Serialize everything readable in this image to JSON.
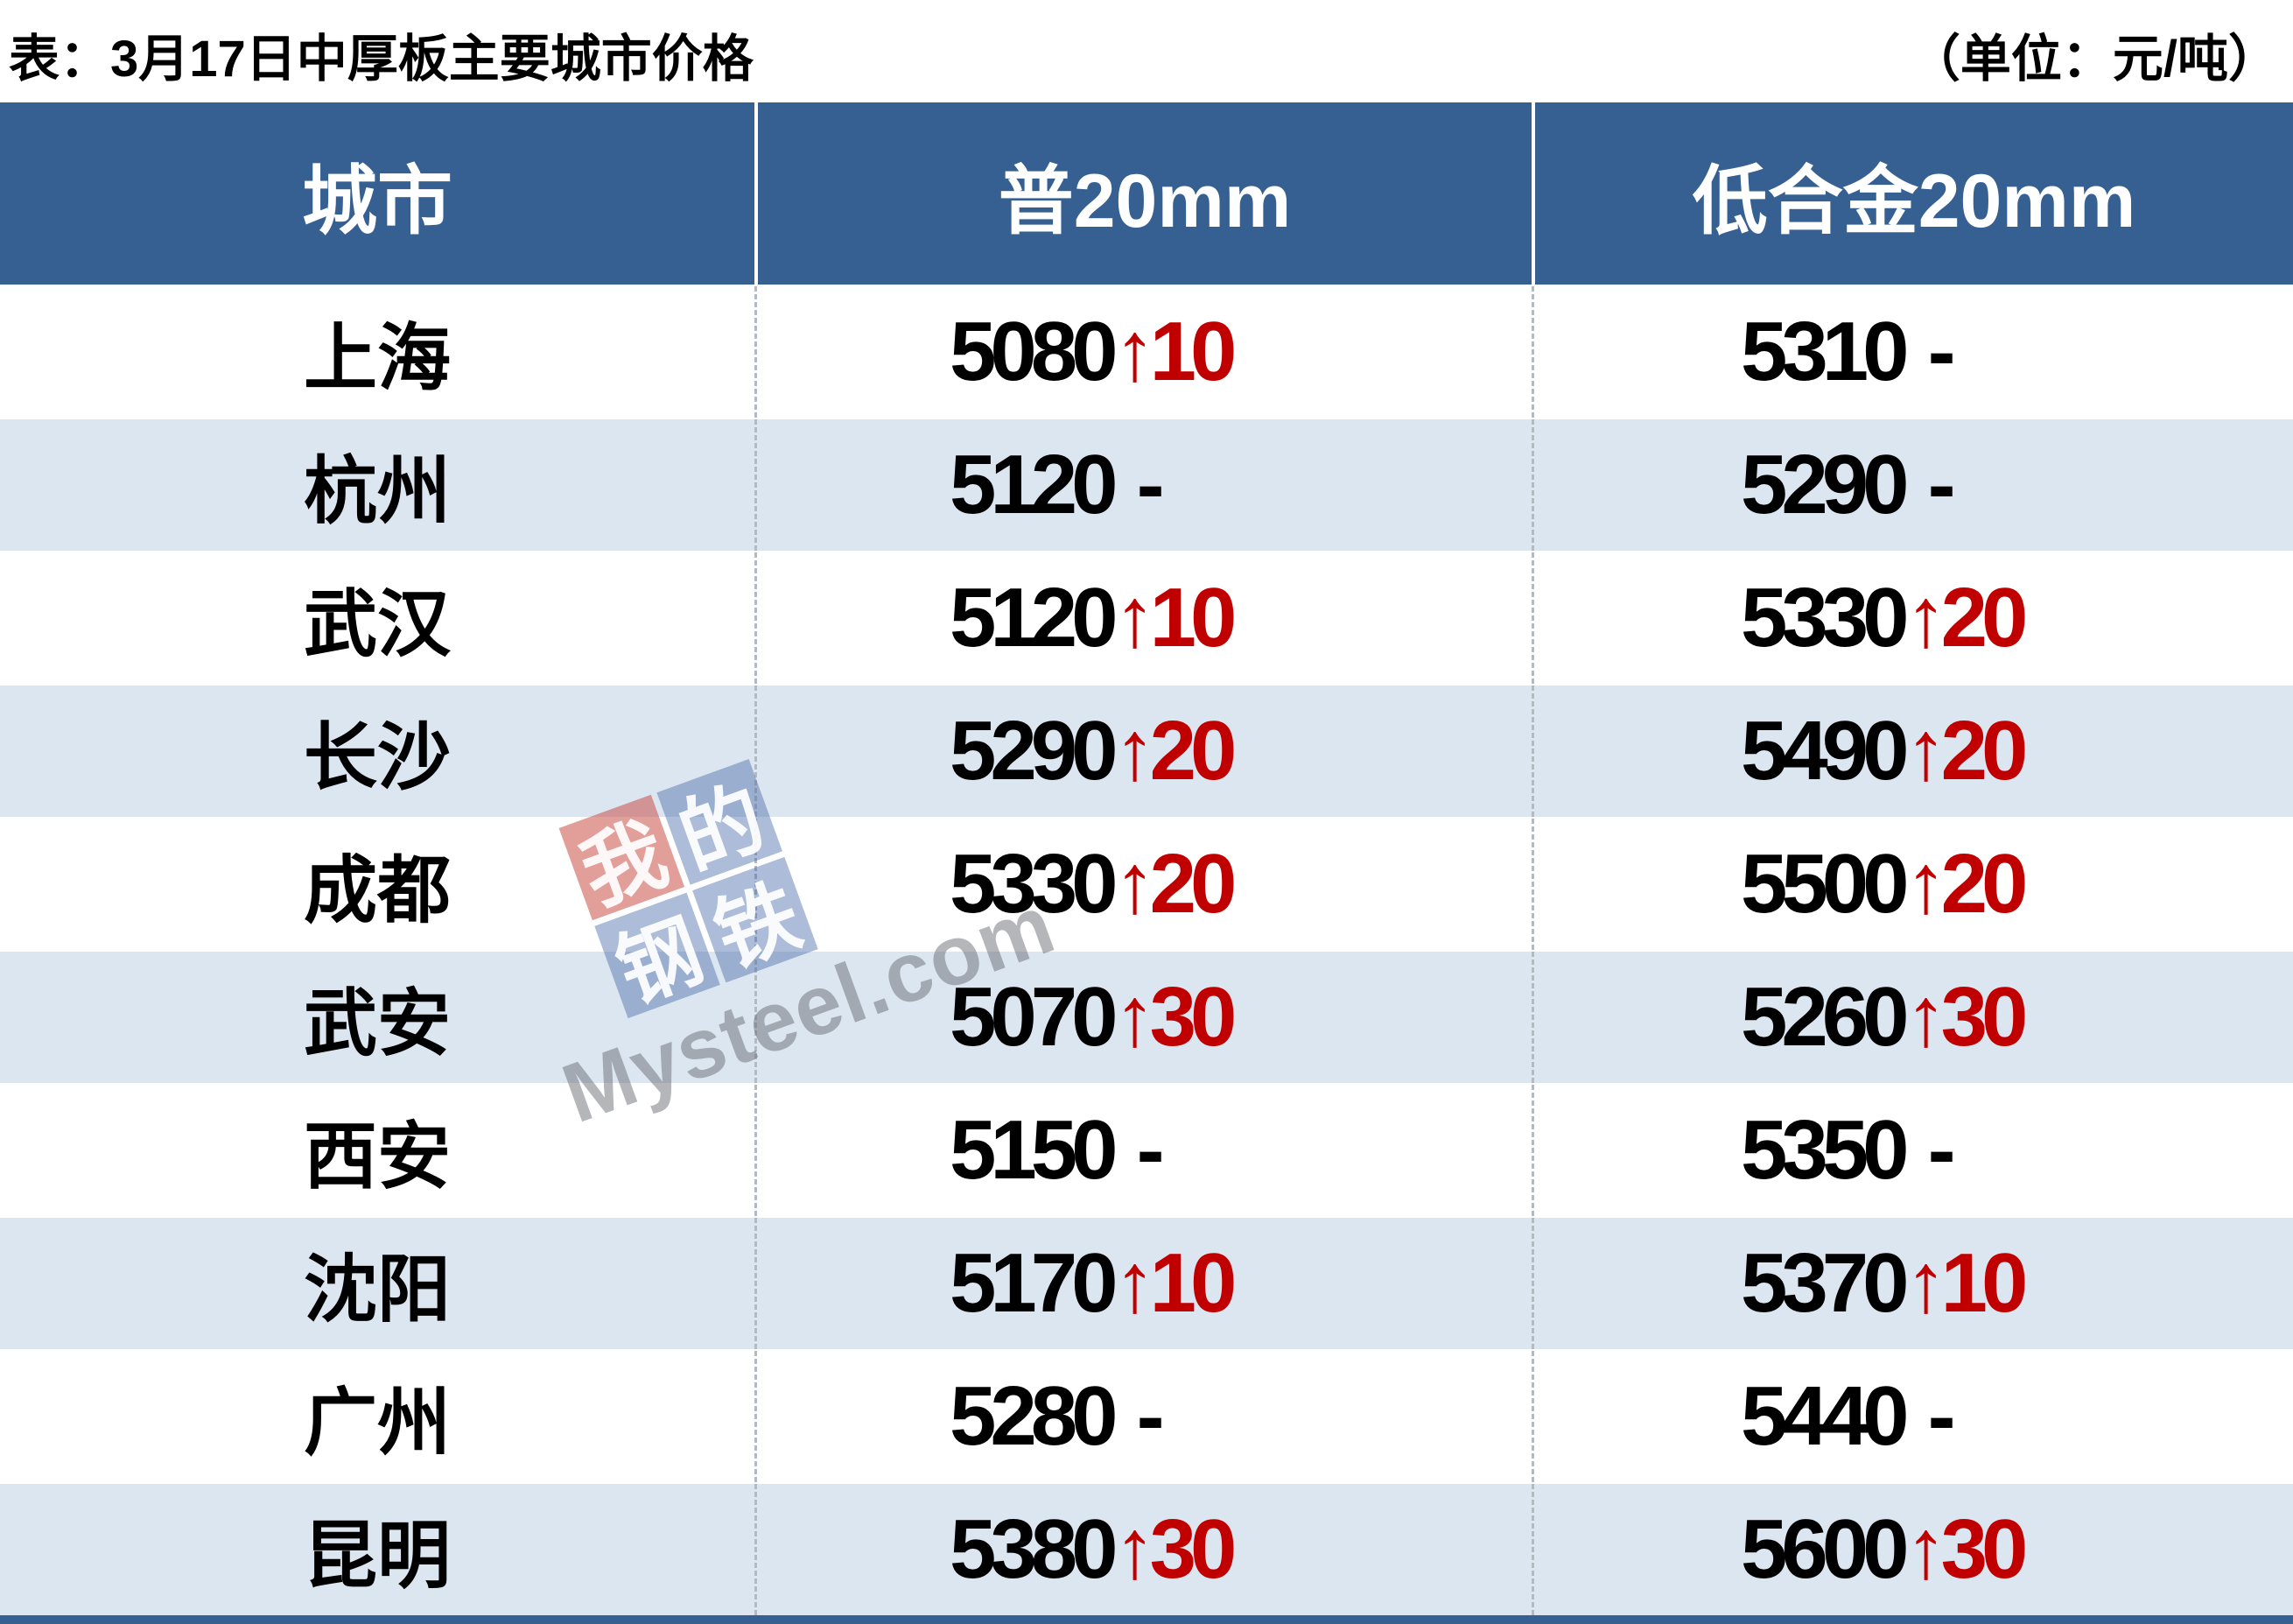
{
  "title": "表：3月17日中厚板主要城市价格",
  "unit": "（单位：元/吨）",
  "table": {
    "headers": [
      "城市",
      "普20mm",
      "低合金20mm"
    ],
    "rows": [
      {
        "city": "上海",
        "p20": {
          "price": "5080",
          "change": "↑10"
        },
        "lowalloy": {
          "price": "5310",
          "change": "-"
        }
      },
      {
        "city": "杭州",
        "p20": {
          "price": "5120",
          "change": "-"
        },
        "lowalloy": {
          "price": "5290",
          "change": "-"
        }
      },
      {
        "city": "武汉",
        "p20": {
          "price": "5120",
          "change": "↑10"
        },
        "lowalloy": {
          "price": "5330",
          "change": "↑20"
        }
      },
      {
        "city": "长沙",
        "p20": {
          "price": "5290",
          "change": "↑20"
        },
        "lowalloy": {
          "price": "5490",
          "change": "↑20"
        }
      },
      {
        "city": "成都",
        "p20": {
          "price": "5330",
          "change": "↑20"
        },
        "lowalloy": {
          "price": "5500",
          "change": "↑20"
        }
      },
      {
        "city": "武安",
        "p20": {
          "price": "5070",
          "change": "↑30"
        },
        "lowalloy": {
          "price": "5260",
          "change": "↑30"
        }
      },
      {
        "city": "西安",
        "p20": {
          "price": "5150",
          "change": "-"
        },
        "lowalloy": {
          "price": "5350",
          "change": "-"
        }
      },
      {
        "city": "沈阳",
        "p20": {
          "price": "5170",
          "change": "↑10"
        },
        "lowalloy": {
          "price": "5370",
          "change": "↑10"
        }
      },
      {
        "city": "广州",
        "p20": {
          "price": "5280",
          "change": "-"
        },
        "lowalloy": {
          "price": "5440",
          "change": "-"
        }
      },
      {
        "city": "昆明",
        "p20": {
          "price": "5380",
          "change": "↑30"
        },
        "lowalloy": {
          "price": "5600",
          "change": "↑30"
        }
      }
    ]
  },
  "watermark": {
    "tiles": [
      "我",
      "的",
      "钢",
      "铁"
    ],
    "text": "Mysteel.com"
  },
  "colors": {
    "header_bg": "#366092",
    "alt_row_bg": "#dce6f1",
    "change_up_red": "#c00000",
    "bottom_bar": "#366092",
    "divider_dash": "#b4bac2",
    "watermark_red_tile": "#c53f35",
    "watermark_blue_tile": "#496ba8"
  },
  "chart_data": {
    "type": "table",
    "title": "表：3月17日中厚板主要城市价格",
    "unit": "元/吨",
    "columns": [
      "城市",
      "普20mm",
      "低合金20mm"
    ],
    "rows": [
      {
        "city": "上海",
        "p20mm_price": 5080,
        "p20mm_change": 10,
        "lowalloy20mm_price": 5310,
        "lowalloy20mm_change": 0
      },
      {
        "city": "杭州",
        "p20mm_price": 5120,
        "p20mm_change": 0,
        "lowalloy20mm_price": 5290,
        "lowalloy20mm_change": 0
      },
      {
        "city": "武汉",
        "p20mm_price": 5120,
        "p20mm_change": 10,
        "lowalloy20mm_price": 5330,
        "lowalloy20mm_change": 20
      },
      {
        "city": "长沙",
        "p20mm_price": 5290,
        "p20mm_change": 20,
        "lowalloy20mm_price": 5490,
        "lowalloy20mm_change": 20
      },
      {
        "city": "成都",
        "p20mm_price": 5330,
        "p20mm_change": 20,
        "lowalloy20mm_price": 5500,
        "lowalloy20mm_change": 20
      },
      {
        "city": "武安",
        "p20mm_price": 5070,
        "p20mm_change": 30,
        "lowalloy20mm_price": 5260,
        "lowalloy20mm_change": 30
      },
      {
        "city": "西安",
        "p20mm_price": 5150,
        "p20mm_change": 0,
        "lowalloy20mm_price": 5350,
        "lowalloy20mm_change": 0
      },
      {
        "city": "沈阳",
        "p20mm_price": 5170,
        "p20mm_change": 10,
        "lowalloy20mm_price": 5370,
        "lowalloy20mm_change": 10
      },
      {
        "city": "广州",
        "p20mm_price": 5280,
        "p20mm_change": 0,
        "lowalloy20mm_price": 5440,
        "lowalloy20mm_change": 0
      },
      {
        "city": "昆明",
        "p20mm_price": 5380,
        "p20mm_change": 30,
        "lowalloy20mm_price": 5600,
        "lowalloy20mm_change": 30
      }
    ]
  }
}
